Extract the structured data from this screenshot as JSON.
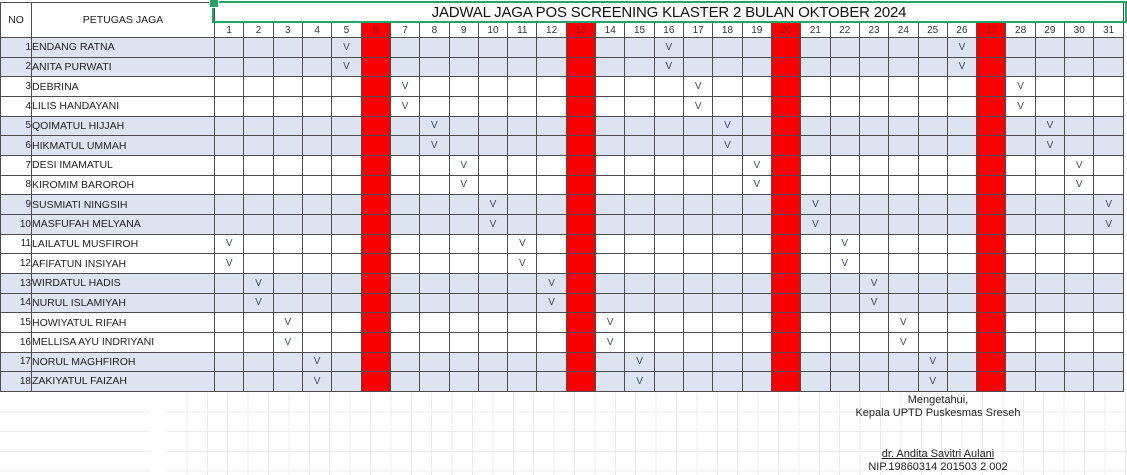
{
  "sheet": {
    "title": "JADWAL JAGA POS SCREENING KLASTER 2 BULAN OKTOBER 2024",
    "header": {
      "no": "NO",
      "officer": "PETUGAS JAGA"
    },
    "days": [
      1,
      2,
      3,
      4,
      5,
      6,
      7,
      8,
      9,
      10,
      11,
      12,
      13,
      14,
      15,
      16,
      17,
      18,
      19,
      20,
      21,
      22,
      23,
      24,
      25,
      26,
      27,
      28,
      29,
      30,
      31
    ],
    "red_days": [
      6,
      13,
      20,
      27
    ],
    "mark": "V",
    "rows": [
      {
        "no": 1,
        "name": "ENDANG RATNA",
        "days": [
          5,
          16,
          26
        ]
      },
      {
        "no": 2,
        "name": "ANITA PURWATI",
        "days": [
          5,
          16,
          26
        ]
      },
      {
        "no": 3,
        "name": "DEBRINA",
        "days": [
          7,
          17,
          28
        ]
      },
      {
        "no": 4,
        "name": "LILIS HANDAYANI",
        "days": [
          7,
          17,
          28
        ]
      },
      {
        "no": 5,
        "name": "QOIMATUL HIJJAH",
        "days": [
          8,
          18,
          29
        ]
      },
      {
        "no": 6,
        "name": "HIKMATUL UMMAH",
        "days": [
          8,
          18,
          29
        ]
      },
      {
        "no": 7,
        "name": "DESI IMAMATUL",
        "days": [
          9,
          19,
          30
        ]
      },
      {
        "no": 8,
        "name": "KIROMIM BAROROH",
        "days": [
          9,
          19,
          30
        ]
      },
      {
        "no": 9,
        "name": "SUSMIATI NINGSIH",
        "days": [
          10,
          21,
          31
        ]
      },
      {
        "no": 10,
        "name": "MASFUFAH MELYANA",
        "days": [
          10,
          21,
          31
        ]
      },
      {
        "no": 11,
        "name": "LAILATUL MUSFIROH",
        "days": [
          1,
          11,
          22
        ]
      },
      {
        "no": 12,
        "name": "AFIFATUN INSIYAH",
        "days": [
          1,
          11,
          22
        ]
      },
      {
        "no": 13,
        "name": "WIRDATUL HADIS",
        "days": [
          2,
          12,
          23
        ]
      },
      {
        "no": 14,
        "name": "NURUL ISLAMIYAH",
        "days": [
          2,
          12,
          23
        ]
      },
      {
        "no": 15,
        "name": "HOWIYATUL RIFAH",
        "days": [
          3,
          14,
          24
        ]
      },
      {
        "no": 16,
        "name": "MELLISA AYU INDRIYANI",
        "days": [
          3,
          14,
          24
        ]
      },
      {
        "no": 17,
        "name": "NORUL MAGHFIROH",
        "days": [
          4,
          15,
          25
        ]
      },
      {
        "no": 18,
        "name": "ZAKIYATUL FAIZAH",
        "days": [
          4,
          15,
          25
        ]
      }
    ]
  },
  "footer": {
    "line1": "Mengetahui,",
    "line2": "Kepala UPTD Puskesmas Sreseh",
    "signer": "dr. Andita Savitri Aulani",
    "nip": "NIP.19860314 201503 2 002"
  },
  "colors": {
    "holiday_red": "#f80000",
    "row_shade": "#dbe4f0",
    "selection_green": "#23a566",
    "holiday_number_text": "#8f1500"
  }
}
